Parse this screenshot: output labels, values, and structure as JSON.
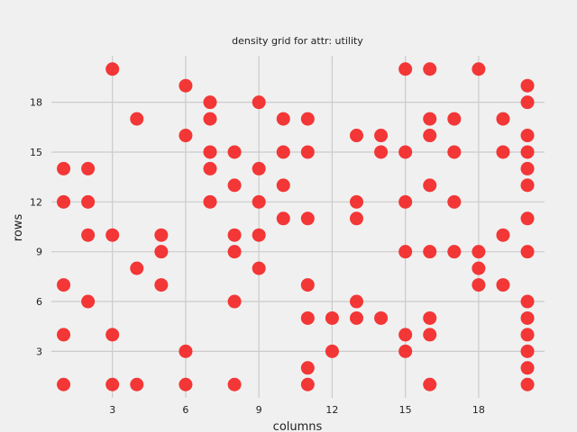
{
  "chart_data": {
    "type": "scatter",
    "title": "density grid for attr: utility",
    "xlabel": "columns",
    "ylabel": "rows",
    "xlim": [
      0.5,
      20.7
    ],
    "ylim": [
      0.2,
      20.8
    ],
    "xticks": [
      3,
      6,
      9,
      12,
      15,
      18
    ],
    "yticks": [
      3,
      6,
      9,
      12,
      15,
      18
    ],
    "grid": true,
    "color": "#f22b2b",
    "background": "#f0f0f0",
    "points": [
      {
        "x": 1,
        "y": 14
      },
      {
        "x": 1,
        "y": 12
      },
      {
        "x": 1,
        "y": 7
      },
      {
        "x": 1,
        "y": 4
      },
      {
        "x": 1,
        "y": 1
      },
      {
        "x": 2,
        "y": 14
      },
      {
        "x": 2,
        "y": 12
      },
      {
        "x": 2,
        "y": 10
      },
      {
        "x": 2,
        "y": 6
      },
      {
        "x": 3,
        "y": 20
      },
      {
        "x": 3,
        "y": 10
      },
      {
        "x": 3,
        "y": 4
      },
      {
        "x": 3,
        "y": 1
      },
      {
        "x": 4,
        "y": 17
      },
      {
        "x": 4,
        "y": 8
      },
      {
        "x": 4,
        "y": 1
      },
      {
        "x": 5,
        "y": 10
      },
      {
        "x": 5,
        "y": 9
      },
      {
        "x": 5,
        "y": 7
      },
      {
        "x": 6,
        "y": 19
      },
      {
        "x": 6,
        "y": 16
      },
      {
        "x": 6,
        "y": 3
      },
      {
        "x": 6,
        "y": 1
      },
      {
        "x": 7,
        "y": 18
      },
      {
        "x": 7,
        "y": 17
      },
      {
        "x": 7,
        "y": 15
      },
      {
        "x": 7,
        "y": 14
      },
      {
        "x": 7,
        "y": 12
      },
      {
        "x": 8,
        "y": 15
      },
      {
        "x": 8,
        "y": 13
      },
      {
        "x": 8,
        "y": 10
      },
      {
        "x": 8,
        "y": 9
      },
      {
        "x": 8,
        "y": 6
      },
      {
        "x": 8,
        "y": 1
      },
      {
        "x": 9,
        "y": 18
      },
      {
        "x": 9,
        "y": 14
      },
      {
        "x": 9,
        "y": 12
      },
      {
        "x": 9,
        "y": 10
      },
      {
        "x": 9,
        "y": 8
      },
      {
        "x": 10,
        "y": 17
      },
      {
        "x": 10,
        "y": 15
      },
      {
        "x": 10,
        "y": 13
      },
      {
        "x": 10,
        "y": 11
      },
      {
        "x": 11,
        "y": 17
      },
      {
        "x": 11,
        "y": 15
      },
      {
        "x": 11,
        "y": 11
      },
      {
        "x": 11,
        "y": 7
      },
      {
        "x": 11,
        "y": 5
      },
      {
        "x": 11,
        "y": 2
      },
      {
        "x": 11,
        "y": 1
      },
      {
        "x": 12,
        "y": 5
      },
      {
        "x": 12,
        "y": 3
      },
      {
        "x": 13,
        "y": 16
      },
      {
        "x": 13,
        "y": 12
      },
      {
        "x": 13,
        "y": 11
      },
      {
        "x": 13,
        "y": 6
      },
      {
        "x": 13,
        "y": 5
      },
      {
        "x": 14,
        "y": 16
      },
      {
        "x": 14,
        "y": 15
      },
      {
        "x": 14,
        "y": 5
      },
      {
        "x": 15,
        "y": 20
      },
      {
        "x": 15,
        "y": 15
      },
      {
        "x": 15,
        "y": 12
      },
      {
        "x": 15,
        "y": 9
      },
      {
        "x": 15,
        "y": 4
      },
      {
        "x": 15,
        "y": 3
      },
      {
        "x": 16,
        "y": 20
      },
      {
        "x": 16,
        "y": 17
      },
      {
        "x": 16,
        "y": 16
      },
      {
        "x": 16,
        "y": 13
      },
      {
        "x": 16,
        "y": 9
      },
      {
        "x": 16,
        "y": 5
      },
      {
        "x": 16,
        "y": 4
      },
      {
        "x": 16,
        "y": 1
      },
      {
        "x": 17,
        "y": 17
      },
      {
        "x": 17,
        "y": 15
      },
      {
        "x": 17,
        "y": 12
      },
      {
        "x": 17,
        "y": 9
      },
      {
        "x": 18,
        "y": 20
      },
      {
        "x": 18,
        "y": 9
      },
      {
        "x": 18,
        "y": 8
      },
      {
        "x": 18,
        "y": 7
      },
      {
        "x": 19,
        "y": 17
      },
      {
        "x": 19,
        "y": 15
      },
      {
        "x": 19,
        "y": 10
      },
      {
        "x": 19,
        "y": 7
      },
      {
        "x": 20,
        "y": 19
      },
      {
        "x": 20,
        "y": 18
      },
      {
        "x": 20,
        "y": 16
      },
      {
        "x": 20,
        "y": 15
      },
      {
        "x": 20,
        "y": 14
      },
      {
        "x": 20,
        "y": 13
      },
      {
        "x": 20,
        "y": 11
      },
      {
        "x": 20,
        "y": 9
      },
      {
        "x": 20,
        "y": 6
      },
      {
        "x": 20,
        "y": 5
      },
      {
        "x": 20,
        "y": 4
      },
      {
        "x": 20,
        "y": 3
      },
      {
        "x": 20,
        "y": 2
      },
      {
        "x": 20,
        "y": 1
      }
    ]
  }
}
